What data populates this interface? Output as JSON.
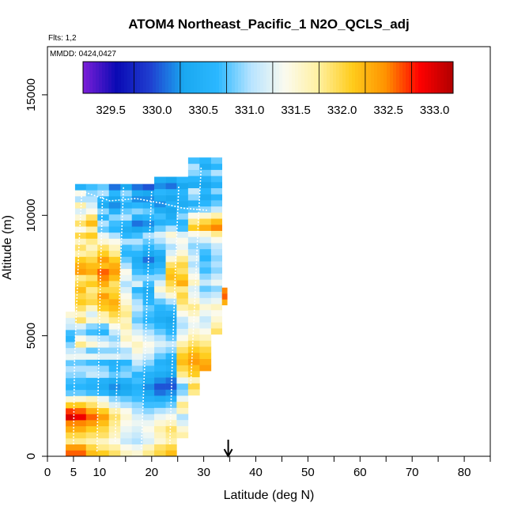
{
  "chart_data": {
    "type": "heatmap",
    "title": "ATOM4 Northeast_Pacific_1 N2O_QCLS_adj",
    "flights_note": "Flts: 1,2",
    "dates_note": "MMDD: 0424,0427",
    "xlabel": "Latitude (deg N)",
    "ylabel": "Altitude (m)",
    "xlim": [
      0,
      85
    ],
    "ylim": [
      0,
      17000
    ],
    "x_ticks": [
      0,
      5,
      10,
      20,
      30,
      40,
      50,
      60,
      70,
      80
    ],
    "x_minor_ticks": [
      15,
      25,
      35,
      45,
      55,
      65,
      75,
      85
    ],
    "y_ticks": [
      0,
      5000,
      10000,
      15000
    ],
    "marker_latitude": 34.7,
    "colorbar": {
      "min": 329.2,
      "max": 333.2,
      "ticks": [
        329.5,
        330.0,
        330.5,
        331.0,
        331.5,
        332.0,
        332.5,
        333.0
      ],
      "dividers": [
        329.75,
        330.25,
        330.75,
        331.25,
        331.75,
        332.25,
        332.75
      ],
      "colors": [
        "#7c1fd8",
        "#0a0ab4",
        "#1f3fd0",
        "#1aa8f0",
        "#2bb8ff",
        "#b8e4ff",
        "#fbfbef",
        "#fff0a0",
        "#ffcc1c",
        "#ff9200",
        "#ff0000",
        "#b00000"
      ]
    },
    "columns": [
      {
        "x0": 3.5,
        "x1": 5.3,
        "ytop": 6000,
        "values": [
          332.6,
          332.4,
          331.8,
          332.0,
          332.3,
          332.5,
          333.0,
          332.7,
          332.1,
          331.5,
          330.8,
          330.6,
          330.7,
          330.9,
          331.0,
          330.8,
          331.3,
          331.1,
          330.9,
          330.6,
          330.7,
          331.1,
          331.2,
          331.5
        ]
      },
      {
        "x0": 5.3,
        "x1": 7.4,
        "ytop": 11300,
        "values": [
          332.6,
          332.4,
          331.8,
          332.0,
          332.3,
          332.5,
          332.9,
          332.6,
          332.1,
          331.5,
          330.8,
          330.6,
          330.7,
          330.9,
          331.0,
          330.8,
          331.3,
          331.1,
          331.8,
          331.4,
          330.9,
          331.2,
          331.9,
          331.6,
          331.9,
          332.1,
          332.0,
          332.2,
          332.0,
          331.8,
          332.4,
          332.3,
          332.1,
          331.7,
          331.9,
          331.6,
          332.0,
          331.4,
          331.9,
          331.5,
          331.2,
          331.7,
          331.0,
          331.4,
          330.5
        ]
      },
      {
        "x0": 7.4,
        "x1": 9.6,
        "ytop": 11300,
        "values": [
          332.2,
          332.0,
          331.7,
          331.9,
          332.1,
          332.4,
          332.6,
          332.3,
          331.9,
          331.6,
          330.7,
          330.5,
          330.6,
          331.1,
          331.0,
          330.7,
          331.3,
          330.8,
          331.5,
          331.2,
          330.7,
          330.9,
          331.5,
          331.2,
          331.6,
          332.0,
          331.9,
          331.8,
          332.1,
          331.9,
          332.3,
          332.2,
          332.0,
          331.8,
          331.6,
          331.8,
          332.1,
          331.7,
          332.2,
          331.9,
          331.4,
          331.2,
          331.0,
          330.9,
          330.7
        ]
      },
      {
        "x0": 9.6,
        "x1": 11.8,
        "ytop": 11300,
        "values": [
          332.1,
          331.8,
          331.6,
          331.9,
          332.0,
          332.2,
          332.4,
          332.1,
          331.6,
          331.3,
          330.6,
          330.4,
          330.5,
          331.0,
          330.9,
          330.6,
          331.2,
          330.9,
          331.3,
          331.0,
          330.6,
          330.8,
          331.6,
          331.7,
          332.1,
          332.2,
          332.4,
          332.0,
          332.3,
          332.5,
          332.6,
          332.2,
          332.4,
          332.1,
          331.9,
          331.5,
          331.3,
          330.8,
          331.0,
          330.6,
          330.9,
          330.4,
          330.6,
          331.0,
          330.8
        ]
      },
      {
        "x0": 11.8,
        "x1": 14.0,
        "ytop": 11300,
        "values": [
          331.9,
          331.7,
          331.4,
          331.6,
          331.7,
          331.8,
          331.9,
          331.7,
          331.2,
          330.9,
          330.3,
          330.2,
          330.4,
          330.8,
          330.6,
          330.5,
          331.2,
          330.9,
          331.1,
          330.9,
          331.1,
          331.4,
          331.8,
          332.0,
          332.2,
          332.3,
          332.1,
          332.0,
          331.9,
          332.2,
          332.4,
          332.3,
          332.1,
          331.8,
          331.6,
          331.4,
          331.0,
          330.6,
          330.7,
          330.9,
          330.5,
          330.2,
          330.3,
          330.6,
          330.1
        ]
      },
      {
        "x0": 14.0,
        "x1": 16.2,
        "ytop": 11300,
        "values": [
          331.6,
          331.4,
          331.1,
          331.2,
          331.3,
          331.4,
          331.5,
          331.4,
          331.0,
          330.8,
          330.4,
          330.3,
          330.5,
          330.9,
          330.8,
          330.6,
          331.1,
          331.0,
          331.4,
          331.6,
          331.5,
          331.7,
          331.6,
          331.8,
          331.7,
          331.5,
          331.4,
          331.2,
          331.0,
          331.3,
          331.4,
          331.0,
          330.8,
          330.6,
          330.7,
          331.0,
          330.6,
          330.4,
          330.6,
          331.0,
          330.8,
          330.5,
          330.7,
          330.9,
          330.3
        ]
      },
      {
        "x0": 16.2,
        "x1": 18.3,
        "ytop": 11300,
        "values": [
          331.5,
          331.3,
          331.0,
          331.1,
          331.2,
          331.3,
          331.2,
          331.0,
          330.9,
          330.7,
          330.6,
          330.5,
          330.7,
          330.6,
          330.9,
          331.1,
          331.3,
          331.5,
          331.6,
          331.4,
          331.2,
          331.0,
          330.8,
          330.9,
          331.1,
          331.0,
          330.8,
          330.6,
          331.2,
          330.9,
          330.7,
          330.5,
          330.4,
          330.6,
          330.8,
          331.0,
          330.7,
          330.3,
          330.1,
          330.5,
          330.9,
          330.6,
          330.2,
          330.4,
          330.1
        ]
      },
      {
        "x0": 18.3,
        "x1": 20.5,
        "ytop": 11300,
        "values": [
          331.8,
          331.6,
          331.2,
          331.3,
          331.4,
          331.3,
          331.1,
          330.9,
          330.7,
          330.5,
          330.3,
          330.2,
          330.4,
          330.5,
          330.7,
          330.9,
          331.1,
          331.3,
          331.4,
          331.2,
          331.0,
          330.8,
          330.6,
          330.7,
          330.8,
          330.6,
          330.5,
          330.4,
          330.7,
          330.9,
          330.6,
          330.3,
          330.1,
          330.3,
          330.6,
          330.8,
          331.0,
          330.4,
          330.2,
          330.6,
          330.8,
          330.5,
          330.2,
          330.3,
          330.0
        ]
      },
      {
        "x0": 20.5,
        "x1": 22.7,
        "ytop": 11600,
        "values": [
          332.0,
          331.9,
          331.5,
          331.6,
          331.7,
          331.5,
          331.3,
          331.0,
          330.7,
          330.4,
          330.1,
          330.0,
          330.2,
          330.4,
          330.6,
          330.5,
          330.8,
          331.0,
          331.2,
          331.0,
          330.8,
          330.6,
          330.4,
          330.5,
          330.6,
          330.8,
          331.2,
          331.5,
          331.2,
          330.9,
          330.7,
          330.5,
          330.3,
          330.5,
          330.8,
          331.0,
          331.2,
          330.8,
          330.5,
          330.7,
          330.4,
          330.2,
          330.4,
          330.6,
          330.2,
          330.4
        ]
      },
      {
        "x0": 22.7,
        "x1": 24.8,
        "ytop": 11600,
        "values": [
          332.2,
          332.0,
          331.7,
          331.8,
          331.9,
          331.6,
          331.4,
          331.1,
          330.8,
          330.5,
          330.2,
          330.0,
          330.1,
          330.3,
          330.5,
          330.4,
          330.6,
          330.9,
          331.1,
          330.8,
          330.6,
          330.4,
          330.3,
          330.5,
          330.7,
          331.0,
          331.5,
          331.8,
          332.0,
          332.2,
          332.1,
          331.9,
          331.5,
          331.2,
          331.0,
          331.3,
          331.5,
          331.0,
          330.6,
          330.4,
          330.3,
          330.5,
          330.3,
          330.5,
          330.1,
          330.3
        ]
      },
      {
        "x0": 24.8,
        "x1": 27.0,
        "ytop": 11600,
        "values": [
          0,
          0,
          0,
          331.7,
          331.5,
          331.2,
          331.0,
          331.6,
          331.8,
          331.3,
          330.9,
          330.8,
          331.3,
          331.8,
          332.0,
          332.2,
          332.1,
          331.9,
          331.7,
          331.4,
          331.2,
          331.0,
          331.1,
          331.4,
          331.7,
          331.9,
          332.0,
          331.8,
          332.3,
          332.1,
          331.9,
          332.0,
          331.8,
          331.5,
          331.3,
          331.4,
          331.2,
          330.7,
          330.6,
          330.9,
          330.7,
          330.4,
          330.5,
          330.6,
          330.3,
          330.6
        ]
      },
      {
        "x0": 27.0,
        "x1": 29.2,
        "ytop": 12400,
        "values": [
          0,
          0,
          0,
          0,
          0,
          0,
          0,
          0,
          0,
          0,
          331.8,
          332.0,
          331.6,
          332.1,
          332.2,
          332.4,
          332.3,
          332.1,
          331.9,
          331.7,
          331.5,
          331.3,
          331.4,
          331.6,
          331.8,
          331.5,
          331.3,
          331.2,
          331.6,
          331.4,
          331.2,
          331.0,
          331.2,
          331.0,
          330.9,
          331.1,
          331.4,
          332.1,
          331.8,
          331.4,
          330.8,
          330.5,
          330.9,
          331.1,
          330.4,
          330.6,
          330.9,
          331.0,
          330.7
        ]
      },
      {
        "x0": 29.2,
        "x1": 31.4,
        "ytop": 12400,
        "values": [
          0,
          0,
          0,
          0,
          0,
          0,
          0,
          0,
          0,
          0,
          0,
          0,
          0,
          0,
          332.4,
          332.3,
          332.1,
          332.0,
          331.8,
          331.6,
          331.4,
          331.2,
          331.1,
          331.3,
          331.5,
          331.2,
          331.0,
          330.8,
          331.1,
          330.9,
          330.7,
          330.8,
          330.6,
          330.7,
          330.9,
          331.2,
          331.5,
          332.3,
          332.0,
          331.5,
          330.9,
          330.6,
          330.4,
          330.6,
          330.3,
          330.5,
          330.8,
          330.4,
          330.6
        ]
      },
      {
        "x0": 31.4,
        "x1": 33.5,
        "ytop": 12400,
        "values": [
          0,
          0,
          0,
          0,
          0,
          0,
          0,
          0,
          0,
          0,
          0,
          0,
          0,
          0,
          0,
          0,
          0,
          0,
          0,
          0,
          331.9,
          331.7,
          331.5,
          331.4,
          331.6,
          331.3,
          331.1,
          330.9,
          331.3,
          331.1,
          330.9,
          331.0,
          330.9,
          331.0,
          331.1,
          331.4,
          331.8,
          332.5,
          332.2,
          331.7,
          331.1,
          330.8,
          330.6,
          330.9,
          330.5,
          330.7,
          331.0,
          330.6,
          330.8
        ]
      },
      {
        "x0": 33.5,
        "x1": 34.5,
        "ytop": 7000,
        "values": [
          0,
          0,
          0,
          0,
          0,
          0,
          0,
          0,
          0,
          0,
          0,
          0,
          0,
          0,
          0,
          0,
          0,
          0,
          0,
          0,
          0,
          0,
          0,
          0,
          0,
          0,
          332.3,
          332.6,
          332.5
        ]
      }
    ]
  }
}
